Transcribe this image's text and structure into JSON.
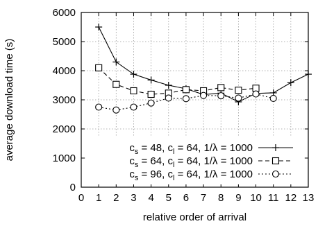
{
  "chart_data": {
    "type": "line",
    "xlabel": "relative order of arrival",
    "ylabel": "average download time (s)",
    "xlim": [
      0,
      13
    ],
    "ylim": [
      0,
      6000
    ],
    "xticks": [
      0,
      1,
      2,
      3,
      4,
      5,
      6,
      7,
      8,
      9,
      10,
      11,
      12,
      13
    ],
    "yticks": [
      0,
      1000,
      2000,
      3000,
      4000,
      5000,
      6000
    ],
    "grid": true,
    "legend_position": "bottom-right",
    "series": [
      {
        "name": "c_s = 48, c_l = 64, 1/λ = 1000",
        "legend_parts": {
          "a": "c",
          "a_sub": "s",
          "b": " = 48, c",
          "b_sub": "l",
          "c": " = 64, 1/λ = 1000"
        },
        "marker": "plus",
        "dash": "solid",
        "x": [
          1,
          2,
          3,
          4,
          5,
          6,
          7,
          8,
          9,
          10,
          11,
          12,
          13
        ],
        "values": [
          5500,
          4300,
          3880,
          3680,
          3500,
          3380,
          3180,
          3230,
          2930,
          3220,
          3240,
          3590,
          3880
        ]
      },
      {
        "name": "c_s = 64, c_l = 64, 1/λ = 1000",
        "legend_parts": {
          "a": "c",
          "a_sub": "s",
          "b": " = 64, c",
          "b_sub": "l",
          "c": " = 64, 1/λ = 1000"
        },
        "marker": "square",
        "dash": "dashed",
        "x": [
          1,
          2,
          3,
          4,
          5,
          6,
          7,
          8,
          9,
          10
        ],
        "values": [
          4100,
          3530,
          3310,
          3190,
          3230,
          3350,
          3310,
          3420,
          3330,
          3400
        ]
      },
      {
        "name": "c_s = 96, c_l = 64, 1/λ = 1000",
        "legend_parts": {
          "a": "c",
          "a_sub": "s",
          "b": " = 96, c",
          "b_sub": "l",
          "c": " = 64, 1/λ = 1000"
        },
        "marker": "circle",
        "dash": "dotted",
        "x": [
          1,
          2,
          3,
          4,
          5,
          6,
          7,
          8,
          9,
          10,
          11
        ],
        "values": [
          2750,
          2650,
          2750,
          2890,
          3060,
          3040,
          3150,
          3140,
          3060,
          3200,
          3050
        ]
      }
    ]
  }
}
